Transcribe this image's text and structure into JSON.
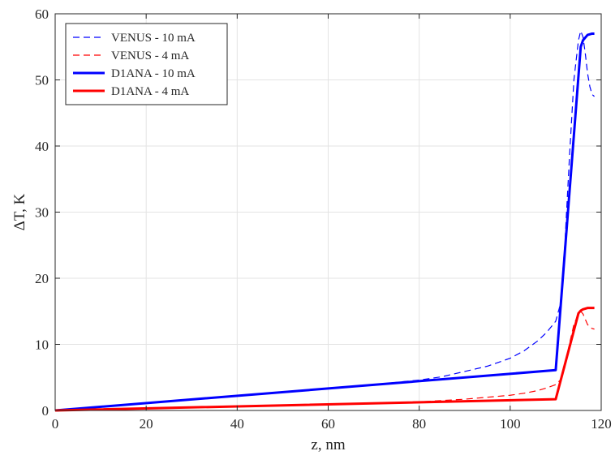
{
  "chart_data": {
    "type": "line",
    "title": "",
    "xlabel": "z, nm",
    "ylabel": "ΔT, K",
    "xlim": [
      0,
      120
    ],
    "ylim": [
      0,
      60
    ],
    "xticks": [
      "0",
      "20",
      "40",
      "60",
      "80",
      "100",
      "120"
    ],
    "yticks": [
      "0",
      "10",
      "20",
      "30",
      "40",
      "50",
      "60"
    ],
    "grid": true,
    "legend_position": "top-left",
    "series": [
      {
        "name": "VENUS - 10 mA",
        "color": "#0000ff",
        "dash": "dashed",
        "x": [
          0,
          20,
          40,
          60,
          70,
          80,
          85,
          90,
          95,
          100,
          103,
          106,
          108,
          110,
          111,
          112,
          113,
          114,
          115,
          115.5,
          116,
          116.5,
          117,
          117.5,
          118,
          118.5
        ],
        "y": [
          0,
          1.1,
          2.2,
          3.3,
          3.9,
          4.6,
          5.1,
          5.9,
          6.7,
          7.9,
          9.0,
          10.5,
          11.8,
          13.5,
          16,
          25,
          38,
          50,
          56.0,
          57.4,
          56.5,
          54.0,
          51.0,
          49.0,
          47.8,
          47.5
        ]
      },
      {
        "name": "VENUS - 4 mA",
        "color": "#ff0000",
        "dash": "dashed",
        "x": [
          0,
          20,
          40,
          60,
          80,
          90,
          95,
          100,
          103,
          106,
          108,
          110,
          111,
          112,
          113,
          114,
          115,
          115.5,
          116,
          116.5,
          117,
          117.5,
          118,
          118.5
        ],
        "y": [
          0,
          0.3,
          0.6,
          0.9,
          1.3,
          1.7,
          2.0,
          2.3,
          2.6,
          3.0,
          3.4,
          3.9,
          4.6,
          6.5,
          10.0,
          13.0,
          14.6,
          15.0,
          14.6,
          13.8,
          13.0,
          12.6,
          12.4,
          12.3
        ]
      },
      {
        "name": "D1ANA - 10 mA",
        "color": "#0000ff",
        "dash": "solid",
        "x": [
          0,
          110,
          115.5,
          116,
          117,
          118,
          118.5
        ],
        "y": [
          0,
          6.1,
          55.0,
          56.0,
          56.8,
          57.0,
          57.0
        ]
      },
      {
        "name": "D1ANA - 4 mA",
        "color": "#ff0000",
        "dash": "solid",
        "x": [
          0,
          110,
          115.0,
          115.5,
          116,
          117,
          118,
          118.5
        ],
        "y": [
          0,
          1.7,
          14.7,
          15.1,
          15.3,
          15.5,
          15.5,
          15.5
        ]
      }
    ]
  }
}
